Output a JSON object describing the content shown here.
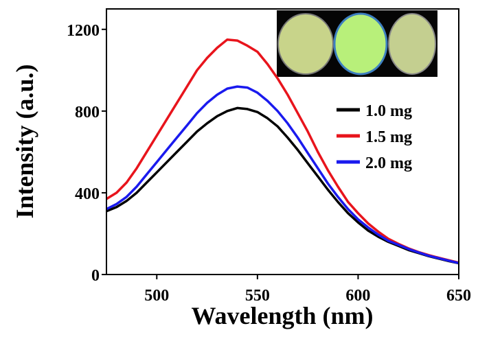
{
  "chart_data": {
    "type": "line",
    "x_label": "Wavelength (nm)",
    "y_label": "Intensity (a.u.)",
    "x": [
      475,
      480,
      485,
      490,
      495,
      500,
      505,
      510,
      515,
      520,
      525,
      530,
      535,
      540,
      545,
      550,
      555,
      560,
      565,
      570,
      575,
      580,
      585,
      590,
      595,
      600,
      605,
      610,
      615,
      620,
      625,
      630,
      635,
      640,
      645,
      650
    ],
    "series": [
      {
        "name": "1.0 mg",
        "color": "#000000",
        "values": [
          310,
          330,
          360,
          400,
          450,
          500,
          550,
          600,
          650,
          700,
          740,
          775,
          800,
          815,
          810,
          795,
          765,
          725,
          670,
          610,
          545,
          480,
          415,
          355,
          300,
          255,
          215,
          185,
          160,
          140,
          120,
          105,
          90,
          78,
          66,
          55
        ]
      },
      {
        "name": "1.5 mg",
        "color": "#e8141c",
        "values": [
          370,
          400,
          450,
          520,
          600,
          680,
          760,
          840,
          920,
          1000,
          1060,
          1110,
          1150,
          1145,
          1120,
          1090,
          1030,
          960,
          880,
          790,
          700,
          600,
          510,
          430,
          355,
          300,
          250,
          210,
          175,
          150,
          128,
          110,
          95,
          82,
          70,
          58
        ]
      },
      {
        "name": "2.0 mg",
        "color": "#1a1aee",
        "values": [
          320,
          345,
          380,
          430,
          490,
          550,
          610,
          670,
          730,
          790,
          840,
          880,
          910,
          920,
          915,
          890,
          850,
          800,
          740,
          670,
          595,
          520,
          445,
          380,
          320,
          270,
          230,
          195,
          165,
          145,
          125,
          108,
          92,
          80,
          68,
          56
        ]
      }
    ],
    "xlim": [
      475,
      650
    ],
    "xticks": [
      500,
      550,
      600,
      650
    ],
    "ylim": [
      0,
      1300
    ],
    "yticks": [
      0,
      400,
      800,
      1200
    ]
  }
}
